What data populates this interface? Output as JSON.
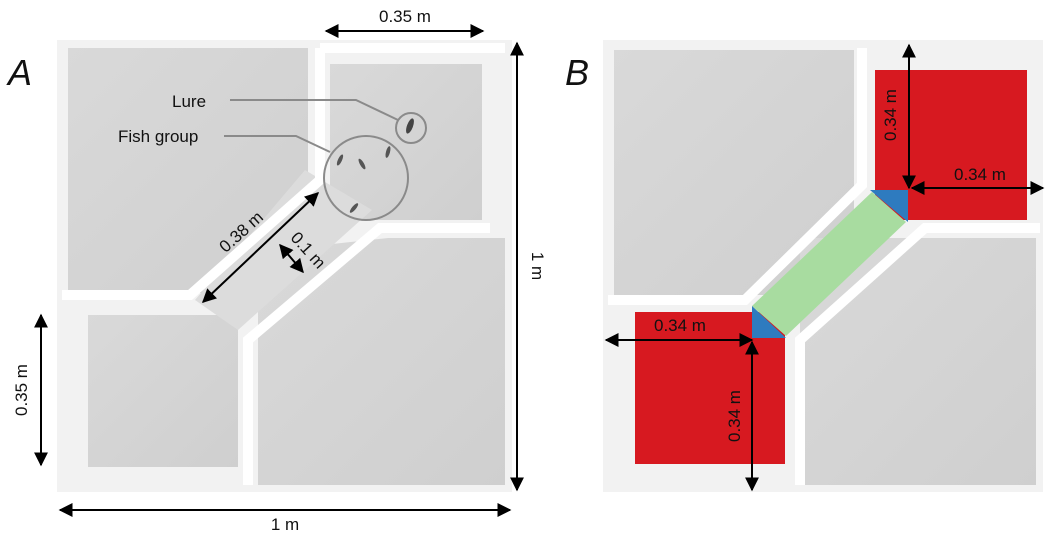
{
  "panels": [
    {
      "letter": "A",
      "annotations": {
        "lure": "Lure",
        "fish_group": "Fish group"
      },
      "dimensions": {
        "top_room_width": "0.35 m",
        "corridor_length": "0.38 m",
        "corridor_width": "0.1 m",
        "left_room_height": "0.35 m",
        "total_width": "1 m",
        "total_height": "1 m"
      }
    },
    {
      "letter": "B",
      "dimensions": {
        "top_room_height": "0.34 m",
        "top_room_width": "0.34 m",
        "bottom_room_width": "0.34 m",
        "bottom_room_height": "0.34 m"
      },
      "zone_colors": {
        "room": "#d71920",
        "corridor": "#a8dca0",
        "entrance": "#2e7bbf"
      }
    }
  ]
}
